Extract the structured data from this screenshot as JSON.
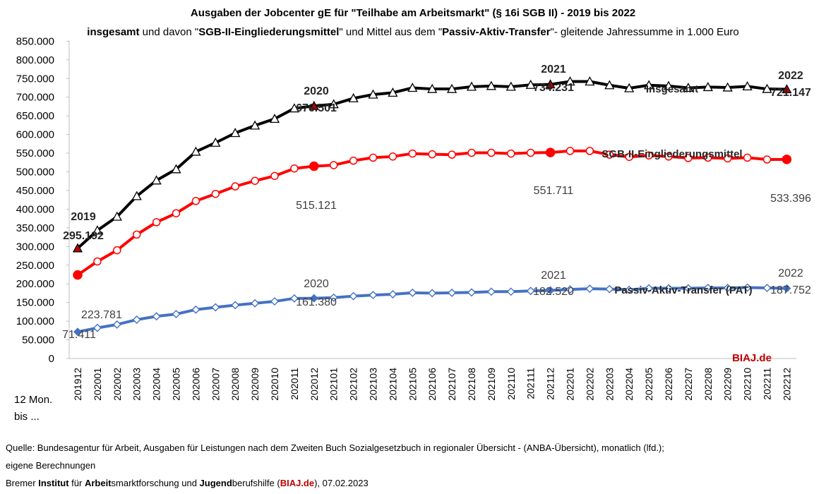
{
  "title": "Ausgaben der Jobcenter gE für \"Teilhabe am Arbeitsmarkt\" (§ 16i SGB II) - 2019 bis 2022",
  "subtitle": {
    "p1": "insgesamt",
    "p2": " und davon \"",
    "p3": "SGB-II-Eingliederungsmittel",
    "p4": "\" und Mittel aus dem \"",
    "p5": "Passiv-Aktiv-Transfer",
    "p6": "\"- gleitende Jahressumme in 1.000 Euro"
  },
  "chart_data": {
    "type": "line",
    "x_axis_caption": [
      "12 Mon.",
      "bis ..."
    ],
    "categories": [
      "201912",
      "202001",
      "202002",
      "202003",
      "202004",
      "202005",
      "202006",
      "202007",
      "202008",
      "202009",
      "202010",
      "202011",
      "202012",
      "202101",
      "202102",
      "202103",
      "202104",
      "202105",
      "202106",
      "202107",
      "202108",
      "202109",
      "202110",
      "202111",
      "202112",
      "202201",
      "202202",
      "202203",
      "202204",
      "202205",
      "202206",
      "202207",
      "202208",
      "202209",
      "202210",
      "202211",
      "202212"
    ],
    "ylim": [
      0,
      850000
    ],
    "yticks": [
      0,
      50000,
      100000,
      150000,
      200000,
      250000,
      300000,
      350000,
      400000,
      450000,
      500000,
      550000,
      600000,
      650000,
      700000,
      750000,
      800000,
      850000
    ],
    "ytick_labels": [
      "0",
      "50.000",
      "100.000",
      "150.000",
      "200.000",
      "250.000",
      "300.000",
      "350.000",
      "400.000",
      "450.000",
      "500.000",
      "550.000",
      "600.000",
      "650.000",
      "700.000",
      "750.000",
      "800.000",
      "850.000"
    ],
    "grid": false,
    "series": [
      {
        "name": "Insgesamt",
        "color": "#000000",
        "values": [
          295192,
          343000,
          380000,
          435000,
          477000,
          507000,
          554000,
          578000,
          604000,
          624000,
          642000,
          670000,
          676501,
          681000,
          697000,
          707000,
          712000,
          725000,
          722000,
          722000,
          728000,
          730000,
          728000,
          733000,
          734231,
          742000,
          742000,
          732000,
          724000,
          732000,
          730000,
          725000,
          727000,
          726000,
          729000,
          722000,
          721147
        ]
      },
      {
        "name": "SGB-II-Eingliederungsmittel",
        "color": "#ff0000",
        "values": [
          223781,
          260000,
          290000,
          332000,
          365000,
          389000,
          422000,
          441000,
          461000,
          476000,
          489000,
          509000,
          515121,
          518000,
          530000,
          538000,
          541000,
          549000,
          547000,
          546000,
          551000,
          551000,
          549000,
          551000,
          551711,
          556000,
          556000,
          546000,
          540000,
          544000,
          541000,
          537000,
          538000,
          536000,
          538000,
          533000,
          533396
        ]
      },
      {
        "name": "Passiv-Aktiv-Transfer (PAT)",
        "color": "#4472c4",
        "values": [
          71411,
          82000,
          91000,
          104000,
          113000,
          119000,
          131000,
          137000,
          143000,
          148000,
          153000,
          161000,
          161380,
          163000,
          167000,
          170000,
          172000,
          176000,
          175000,
          176000,
          177000,
          179000,
          179000,
          181000,
          182520,
          185000,
          187000,
          186000,
          184000,
          188000,
          188000,
          188000,
          189000,
          189000,
          190000,
          189000,
          187752
        ]
      }
    ],
    "annotations": [
      {
        "id": "a2019",
        "text": "2019",
        "bold": true
      },
      {
        "id": "a2019v",
        "text": "295.192",
        "bold": true
      },
      {
        "id": "a2020",
        "text": "2020",
        "bold": true
      },
      {
        "id": "a2020v",
        "text": "676.501",
        "bold": true
      },
      {
        "id": "a2021",
        "text": "2021",
        "bold": true
      },
      {
        "id": "a2021v",
        "text": "734.231",
        "bold": true
      },
      {
        "id": "a2022",
        "text": "2022",
        "bold": true
      },
      {
        "id": "a2022v",
        "text": "721.147",
        "bold": true
      },
      {
        "id": "lblIns",
        "text": "Insgesamt",
        "bold": true
      },
      {
        "id": "lblSGB",
        "text": "SGB-II-Eingliederungsmittel",
        "bold": true
      },
      {
        "id": "r2019",
        "text": "223.781",
        "bold": false
      },
      {
        "id": "r2020",
        "text": "515.121",
        "bold": false
      },
      {
        "id": "r2021",
        "text": "551.711",
        "bold": false
      },
      {
        "id": "r2022",
        "text": "533.396",
        "bold": false
      },
      {
        "id": "lblPAT",
        "text": "Passiv-Aktiv-Transfer (PAT)",
        "bold": true
      },
      {
        "id": "b2019",
        "text": "71.411",
        "bold": false
      },
      {
        "id": "b2020",
        "text": "2020",
        "bold": false
      },
      {
        "id": "b2020v",
        "text": "161.380",
        "bold": false
      },
      {
        "id": "b2021",
        "text": "2021",
        "bold": false
      },
      {
        "id": "b2021v",
        "text": "182.520",
        "bold": false
      },
      {
        "id": "b2022",
        "text": "2022",
        "bold": false
      },
      {
        "id": "b2022v",
        "text": "187.752",
        "bold": false
      },
      {
        "id": "biaj",
        "text": "BIAJ.de",
        "bold": true,
        "color": "#c00000"
      }
    ]
  },
  "source": {
    "line1": "Quelle: Bundesagentur für Arbeit, Ausgaben für Leistungen nach dem Zweiten Buch Sozialgesetzbuch in regionaler Übersicht - (ANBA-Übersicht), monatlich (lfd.);",
    "line2": "eigene Berechnungen",
    "line3": {
      "p1": "Bremer ",
      "p2": "Institut",
      "p3": " für ",
      "p4": "Arbeit",
      "p5": "smarktforschung und ",
      "p6": "Jugend",
      "p7": "berufshilfe (",
      "p8": "BIAJ.de",
      "p9": "), 07.02.2023"
    }
  }
}
